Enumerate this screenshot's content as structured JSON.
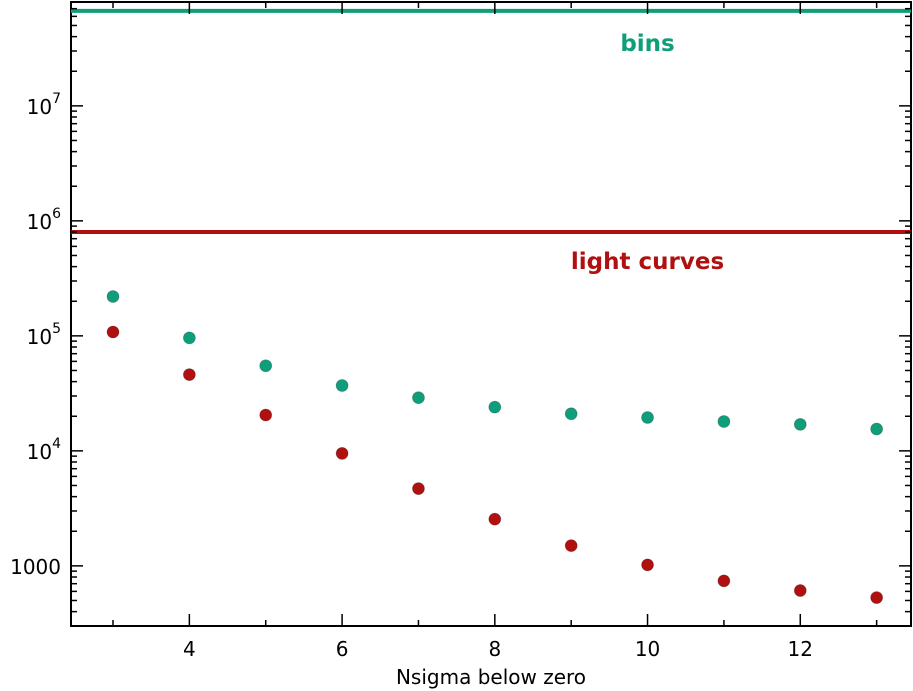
{
  "chart_data": {
    "type": "scatter",
    "title": "",
    "xlabel": "Nsigma below zero",
    "ylabel": "",
    "xscale": "linear",
    "yscale": "log",
    "xlim": [
      2.45,
      13.45
    ],
    "ylim": [
      300,
      80000000
    ],
    "grid": false,
    "x_ticks": [
      {
        "value": 4,
        "label": "4"
      },
      {
        "value": 6,
        "label": "6"
      },
      {
        "value": 8,
        "label": "8"
      },
      {
        "value": 10,
        "label": "10"
      },
      {
        "value": 12,
        "label": "12"
      }
    ],
    "y_ticks": [
      {
        "value": 1000,
        "base": "1000",
        "exp": ""
      },
      {
        "value": 10000,
        "base": "10",
        "exp": "4"
      },
      {
        "value": 100000,
        "base": "10",
        "exp": "5"
      },
      {
        "value": 1000000,
        "base": "10",
        "exp": "6"
      },
      {
        "value": 10000000,
        "base": "10",
        "exp": "7"
      }
    ],
    "reference_lines": [
      {
        "label": "bins",
        "y": 67000000,
        "color": "#0e9e7a",
        "label_x": 10.0,
        "label_y": 30000000
      },
      {
        "label": "light curves",
        "y": 800000,
        "color": "#b01010",
        "label_x": 10.0,
        "label_y": 380000
      }
    ],
    "series": [
      {
        "color": "#0e9e7a",
        "x": [
          3,
          4,
          5,
          6,
          7,
          8,
          9,
          10,
          11,
          12,
          13
        ],
        "y": [
          220000,
          96000,
          55000,
          37000,
          29000,
          24000,
          21000,
          19500,
          18000,
          17000,
          15500
        ]
      },
      {
        "color": "#b01010",
        "x": [
          3,
          4,
          5,
          6,
          7,
          8,
          9,
          10,
          11,
          12,
          13
        ],
        "y": [
          108000,
          46000,
          20500,
          9500,
          4700,
          2550,
          1500,
          1020,
          740,
          610,
          530
        ]
      }
    ]
  }
}
